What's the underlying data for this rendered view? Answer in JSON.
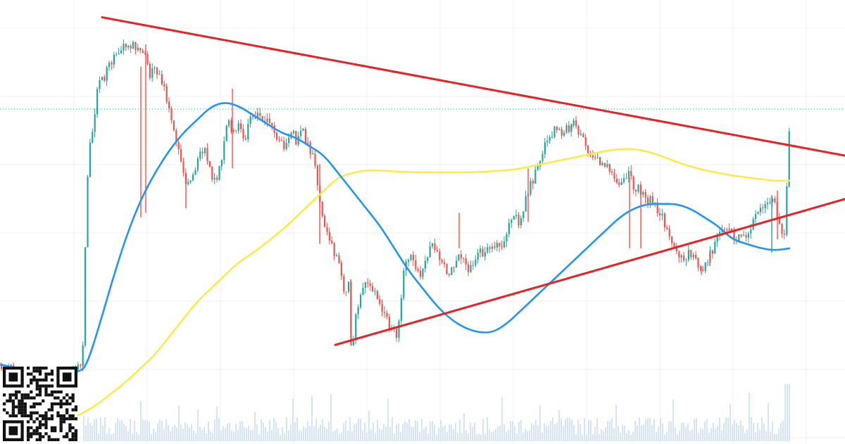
{
  "chart_data": {
    "type": "candlestick",
    "title": "",
    "xlabel": "",
    "ylabel": "",
    "ylim": [
      0,
      100
    ],
    "grid": true,
    "legend": "none",
    "colors": {
      "up": "#26a69a",
      "down": "#ef5350",
      "trendline": "#e82127",
      "ma_fast": "#2196f3",
      "ma_slow": "#ffeb3b",
      "volume": "#d6e4f7",
      "grid": "#eef0f3",
      "last_price_line": "#26a69a"
    },
    "price_path": [
      [
        0,
        17.6
      ],
      [
        18,
        16.5
      ],
      [
        35,
        15.5
      ],
      [
        70,
        14.8
      ],
      [
        100,
        15.3
      ],
      [
        112,
        17.2
      ],
      [
        118,
        24
      ],
      [
        121,
        55
      ],
      [
        126,
        68
      ],
      [
        133,
        73
      ],
      [
        138,
        81
      ],
      [
        148,
        83
      ],
      [
        160,
        87
      ],
      [
        172,
        89
      ],
      [
        183,
        90
      ],
      [
        195,
        89
      ],
      [
        207,
        87
      ],
      [
        212,
        83
      ],
      [
        218,
        85
      ],
      [
        226,
        83
      ],
      [
        234,
        79
      ],
      [
        242,
        72
      ],
      [
        248,
        70
      ],
      [
        256,
        63
      ],
      [
        264,
        59
      ],
      [
        274,
        61
      ],
      [
        282,
        66
      ],
      [
        290,
        66
      ],
      [
        298,
        61
      ],
      [
        306,
        59
      ],
      [
        314,
        65
      ],
      [
        322,
        73
      ],
      [
        330,
        70
      ],
      [
        338,
        73
      ],
      [
        346,
        68
      ],
      [
        354,
        74
      ],
      [
        362,
        74
      ],
      [
        372,
        73
      ],
      [
        382,
        72
      ],
      [
        392,
        68
      ],
      [
        402,
        67
      ],
      [
        412,
        71
      ],
      [
        420,
        68
      ],
      [
        428,
        71
      ],
      [
        436,
        67
      ],
      [
        442,
        65
      ],
      [
        448,
        62
      ],
      [
        452,
        55
      ],
      [
        458,
        49
      ],
      [
        466,
        46
      ],
      [
        474,
        43
      ],
      [
        482,
        39
      ],
      [
        488,
        34
      ],
      [
        494,
        36
      ],
      [
        498,
        21
      ],
      [
        504,
        28
      ],
      [
        510,
        33
      ],
      [
        516,
        35
      ],
      [
        522,
        36
      ],
      [
        528,
        35
      ],
      [
        534,
        33
      ],
      [
        540,
        31
      ],
      [
        546,
        29
      ],
      [
        552,
        26
      ],
      [
        558,
        25
      ],
      [
        562,
        24
      ],
      [
        566,
        27
      ],
      [
        570,
        36
      ],
      [
        576,
        42
      ],
      [
        584,
        42
      ],
      [
        590,
        40
      ],
      [
        596,
        38
      ],
      [
        604,
        41
      ],
      [
        612,
        45
      ],
      [
        620,
        43
      ],
      [
        628,
        41
      ],
      [
        634,
        38
      ],
      [
        642,
        40
      ],
      [
        650,
        43
      ],
      [
        656,
        42
      ],
      [
        664,
        39
      ],
      [
        672,
        40
      ],
      [
        680,
        43
      ],
      [
        688,
        43
      ],
      [
        696,
        44
      ],
      [
        704,
        45
      ],
      [
        710,
        44
      ],
      [
        716,
        47
      ],
      [
        722,
        50
      ],
      [
        728,
        52
      ],
      [
        736,
        50
      ],
      [
        742,
        53
      ],
      [
        748,
        56
      ],
      [
        754,
        59
      ],
      [
        760,
        61
      ],
      [
        766,
        64
      ],
      [
        772,
        68
      ],
      [
        780,
        69
      ],
      [
        788,
        71
      ],
      [
        796,
        70
      ],
      [
        804,
        71
      ],
      [
        812,
        72
      ],
      [
        818,
        71
      ],
      [
        826,
        69
      ],
      [
        832,
        66
      ],
      [
        840,
        65
      ],
      [
        848,
        64
      ],
      [
        856,
        63
      ],
      [
        864,
        62
      ],
      [
        872,
        60
      ],
      [
        880,
        58
      ],
      [
        888,
        60
      ],
      [
        896,
        61
      ],
      [
        900,
        55
      ],
      [
        906,
        58
      ],
      [
        912,
        56
      ],
      [
        920,
        55
      ],
      [
        928,
        54
      ],
      [
        936,
        52
      ],
      [
        944,
        49
      ],
      [
        950,
        46
      ],
      [
        956,
        44
      ],
      [
        962,
        42
      ],
      [
        970,
        41
      ],
      [
        978,
        43
      ],
      [
        986,
        41
      ],
      [
        994,
        39
      ],
      [
        1000,
        40
      ],
      [
        1006,
        42
      ],
      [
        1012,
        44
      ],
      [
        1020,
        47
      ],
      [
        1028,
        49
      ],
      [
        1036,
        48
      ],
      [
        1044,
        46
      ],
      [
        1050,
        47
      ],
      [
        1056,
        46
      ],
      [
        1062,
        48
      ],
      [
        1070,
        51
      ],
      [
        1078,
        52
      ],
      [
        1086,
        53
      ],
      [
        1092,
        54
      ],
      [
        1098,
        55
      ],
      [
        1104,
        51
      ],
      [
        1110,
        48
      ],
      [
        1114,
        47
      ],
      [
        1118,
        66
      ],
      [
        1122,
        78
      ]
    ],
    "wick_spikes": [
      [
        200,
        85,
        51
      ],
      [
        207,
        90,
        52
      ],
      [
        264,
        60,
        53
      ],
      [
        330,
        80,
        62
      ],
      [
        454,
        63,
        45
      ],
      [
        498,
        37,
        25
      ],
      [
        652,
        52,
        44
      ],
      [
        750,
        62,
        50
      ],
      [
        812,
        71,
        72
      ],
      [
        894,
        60,
        44
      ],
      [
        910,
        56,
        44
      ],
      [
        996,
        40,
        38
      ],
      [
        1008,
        43,
        40
      ],
      [
        1096,
        56,
        43
      ],
      [
        1104,
        57,
        46
      ]
    ],
    "ma_fast": [
      [
        0,
        17.8
      ],
      [
        40,
        16.4
      ],
      [
        80,
        15.8
      ],
      [
        115,
        16.0
      ],
      [
        125,
        18.5
      ],
      [
        140,
        26
      ],
      [
        160,
        37
      ],
      [
        180,
        47
      ],
      [
        200,
        55
      ],
      [
        220,
        61
      ],
      [
        240,
        66
      ],
      [
        260,
        70
      ],
      [
        280,
        73
      ],
      [
        300,
        76
      ],
      [
        320,
        77
      ],
      [
        340,
        76
      ],
      [
        360,
        74
      ],
      [
        380,
        72
      ],
      [
        400,
        70
      ],
      [
        420,
        69
      ],
      [
        440,
        67
      ],
      [
        460,
        65
      ],
      [
        480,
        61
      ],
      [
        500,
        57
      ],
      [
        520,
        53
      ],
      [
        540,
        49
      ],
      [
        560,
        44
      ],
      [
        580,
        39
      ],
      [
        600,
        35
      ],
      [
        620,
        31
      ],
      [
        640,
        28
      ],
      [
        660,
        26
      ],
      [
        680,
        25
      ],
      [
        700,
        25
      ],
      [
        720,
        27
      ],
      [
        740,
        30
      ],
      [
        760,
        33
      ],
      [
        780,
        36
      ],
      [
        800,
        39
      ],
      [
        820,
        42
      ],
      [
        840,
        45
      ],
      [
        860,
        48
      ],
      [
        880,
        51
      ],
      [
        900,
        53
      ],
      [
        920,
        54
      ],
      [
        940,
        54
      ],
      [
        960,
        54
      ],
      [
        980,
        53
      ],
      [
        1000,
        51
      ],
      [
        1020,
        49
      ],
      [
        1040,
        46
      ],
      [
        1060,
        45
      ],
      [
        1080,
        44
      ],
      [
        1100,
        43.5
      ],
      [
        1122,
        44
      ]
    ],
    "ma_slow": [
      [
        40,
        2
      ],
      [
        80,
        4
      ],
      [
        120,
        7
      ],
      [
        140,
        9
      ],
      [
        160,
        11.5
      ],
      [
        180,
        14
      ],
      [
        200,
        17
      ],
      [
        220,
        20
      ],
      [
        240,
        24
      ],
      [
        260,
        28
      ],
      [
        280,
        32
      ],
      [
        300,
        35
      ],
      [
        320,
        38
      ],
      [
        340,
        41
      ],
      [
        360,
        43
      ],
      [
        380,
        45.5
      ],
      [
        400,
        48
      ],
      [
        420,
        51
      ],
      [
        440,
        54
      ],
      [
        460,
        57
      ],
      [
        480,
        60
      ],
      [
        500,
        61
      ],
      [
        520,
        61.6
      ],
      [
        540,
        61.6
      ],
      [
        560,
        61.3
      ],
      [
        580,
        61.2
      ],
      [
        600,
        61.1
      ],
      [
        620,
        61.1
      ],
      [
        640,
        61.1
      ],
      [
        660,
        61.1
      ],
      [
        680,
        61.2
      ],
      [
        700,
        61.4
      ],
      [
        720,
        61.6
      ],
      [
        740,
        62.0
      ],
      [
        760,
        62.7
      ],
      [
        780,
        63.3
      ],
      [
        800,
        64.0
      ],
      [
        820,
        64.6
      ],
      [
        840,
        65.3
      ],
      [
        860,
        66.0
      ],
      [
        880,
        66.4
      ],
      [
        900,
        66.4
      ],
      [
        920,
        65.8
      ],
      [
        940,
        64.8
      ],
      [
        960,
        63.5
      ],
      [
        980,
        62.5
      ],
      [
        1000,
        61.6
      ],
      [
        1020,
        61.0
      ],
      [
        1040,
        60.4
      ],
      [
        1060,
        60.0
      ],
      [
        1080,
        59.6
      ],
      [
        1100,
        59.2
      ],
      [
        1122,
        59.3
      ]
    ],
    "trendlines": [
      {
        "x1": 145,
        "y1": 96.1,
        "x2": 1200,
        "y2": 64.9
      },
      {
        "x1": 476,
        "y1": 22.2,
        "x2": 1200,
        "y2": 55.1
      }
    ],
    "last_price_level": 75.4,
    "volume_panel": {
      "seed": 7,
      "base": 0.1,
      "spread": 0.28,
      "spike_every": 9
    }
  }
}
